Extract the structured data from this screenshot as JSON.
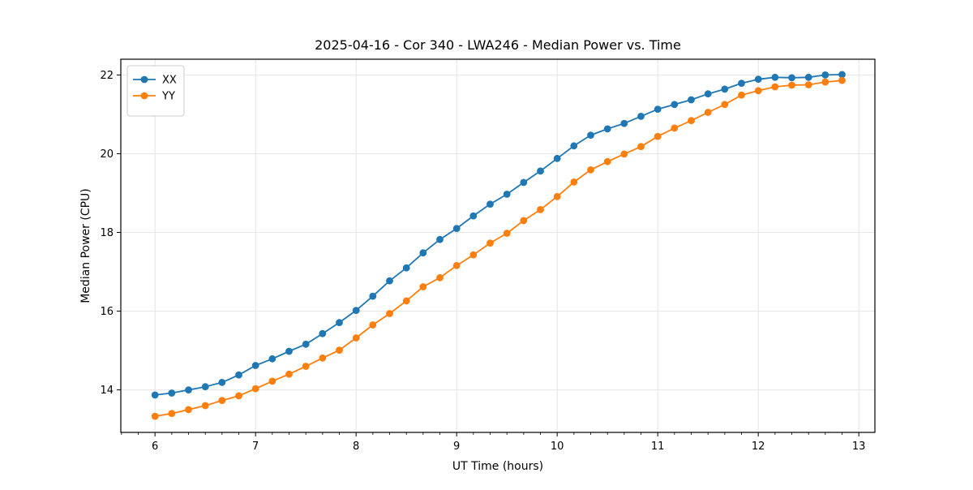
{
  "figure": {
    "background": "#ffffff"
  },
  "chart_data": {
    "type": "line",
    "title": "2025-04-16 - Cor 340 - LWA246 - Median Power vs. Time",
    "xlabel": "UT Time (hours)",
    "ylabel": "Median Power (CPU)",
    "xlim": [
      5.66,
      13.16
    ],
    "ylim": [
      12.92,
      22.4
    ],
    "xticks": [
      6,
      7,
      8,
      9,
      10,
      11,
      12,
      13
    ],
    "yticks": [
      14,
      16,
      18,
      20,
      22
    ],
    "x_minor_step": 0.166667,
    "grid": true,
    "grid_color": "#e6e6e6",
    "legend_position": "upper left",
    "x": [
      6.0,
      6.1667,
      6.3333,
      6.5,
      6.6667,
      6.8333,
      7.0,
      7.1667,
      7.3333,
      7.5,
      7.6667,
      7.8333,
      8.0,
      8.1667,
      8.3333,
      8.5,
      8.6667,
      8.8333,
      9.0,
      9.1667,
      9.3333,
      9.5,
      9.6667,
      9.8333,
      10.0,
      10.1667,
      10.3333,
      10.5,
      10.6667,
      10.8333,
      11.0,
      11.1667,
      11.3333,
      11.5,
      11.6667,
      11.8333,
      12.0,
      12.1667,
      12.3333,
      12.5,
      12.6667,
      12.8333
    ],
    "series": [
      {
        "name": "XX",
        "color": "#1f77b4",
        "values": [
          13.87,
          13.92,
          14.0,
          14.08,
          14.19,
          14.38,
          14.62,
          14.79,
          14.98,
          15.16,
          15.43,
          15.71,
          16.02,
          16.38,
          16.77,
          17.1,
          17.48,
          17.82,
          18.1,
          18.42,
          18.72,
          18.97,
          19.27,
          19.56,
          19.88,
          20.2,
          20.47,
          20.63,
          20.77,
          20.95,
          21.13,
          21.25,
          21.37,
          21.52,
          21.64,
          21.79,
          21.89,
          21.94,
          21.93,
          21.94,
          22.0,
          22.01
        ]
      },
      {
        "name": "YY",
        "color": "#ff7f0e",
        "values": [
          13.33,
          13.4,
          13.5,
          13.6,
          13.73,
          13.85,
          14.03,
          14.22,
          14.4,
          14.6,
          14.81,
          15.01,
          15.32,
          15.65,
          15.94,
          16.26,
          16.62,
          16.85,
          17.16,
          17.43,
          17.73,
          17.98,
          18.3,
          18.58,
          18.91,
          19.28,
          19.59,
          19.8,
          19.99,
          20.18,
          20.44,
          20.65,
          20.84,
          21.05,
          21.25,
          21.49,
          21.6,
          21.7,
          21.74,
          21.75,
          21.82,
          21.86
        ]
      }
    ]
  }
}
